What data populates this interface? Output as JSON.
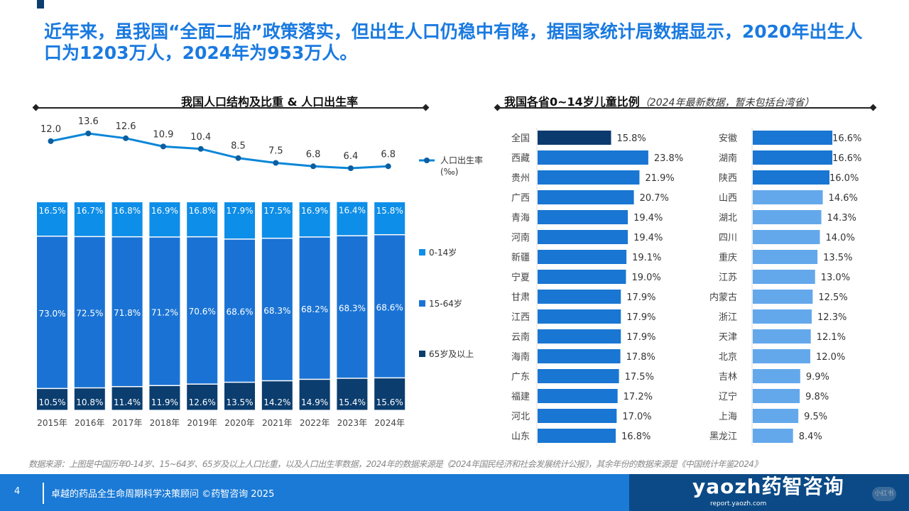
{
  "headline": "近年来，虽我国“全面二胎”政策落实，但出生人口仍稳中有降，据国家统计局数据显示，2020年出生人口为1203万人，2024年为953万人。",
  "left_title": "我国人口结构及比重 & 人口出生率",
  "right_title": "我国各省0~14岁儿童比例",
  "right_subtitle": "（2024年最新数据，暂未包括台湾省）",
  "source": "数据来源：上图是中国历年0-14岁、15~64岁、65岁及以上人口比重，以及人口出生率数据，2024年的数据来源是《2024年国民经济和社会发展统计公报》，其余年份的数据来源是《中国统计年鉴2024》",
  "footer": {
    "page": "4",
    "text": "卓越的药品全生命周期科学决策顾问  ©药智咨询 2025",
    "logo": "yaozh药智咨询",
    "logo_sub": "report.yaozh.com",
    "badge": "小红书"
  },
  "colors": {
    "accent": "#1a7ae0",
    "age0_14": "#0d8ee8",
    "age15_64": "#1a73d4",
    "age65": "#0b3d6e",
    "province_dark": "#0b3a6e",
    "province_mid": "#1976d2",
    "province_light": "#64a8ec"
  },
  "chart_data": [
    {
      "type": "bar",
      "stacked": true,
      "categories": [
        "2015年",
        "2016年",
        "2017年",
        "2018年",
        "2019年",
        "2020年",
        "2021年",
        "2022年",
        "2023年",
        "2024年"
      ],
      "series": [
        {
          "name": "65岁及以上",
          "values": [
            10.5,
            10.8,
            11.4,
            11.9,
            12.6,
            13.5,
            14.2,
            14.9,
            15.4,
            15.6
          ]
        },
        {
          "name": "15-64岁",
          "values": [
            73.0,
            72.5,
            71.8,
            71.2,
            70.6,
            68.6,
            68.3,
            68.2,
            68.3,
            68.6
          ]
        },
        {
          "name": "0-14岁",
          "values": [
            16.5,
            16.7,
            16.8,
            16.9,
            16.8,
            17.9,
            17.5,
            16.9,
            16.4,
            15.8
          ]
        }
      ],
      "line": {
        "name": "人口出生率",
        "unit": "(‰)",
        "values": [
          12.0,
          13.6,
          12.6,
          10.9,
          10.4,
          8.5,
          7.5,
          6.8,
          6.4,
          6.8
        ]
      },
      "legend": "right"
    },
    {
      "type": "bar",
      "orientation": "horizontal",
      "unit": "%",
      "columns": [
        [
          {
            "name": "全国",
            "value": 15.8
          },
          {
            "name": "西藏",
            "value": 23.8
          },
          {
            "name": "贵州",
            "value": 21.9
          },
          {
            "name": "广西",
            "value": 20.7
          },
          {
            "name": "青海",
            "value": 19.4
          },
          {
            "name": "河南",
            "value": 19.4
          },
          {
            "name": "新疆",
            "value": 19.1
          },
          {
            "name": "宁夏",
            "value": 19.0
          },
          {
            "name": "甘肃",
            "value": 17.9
          },
          {
            "name": "江西",
            "value": 17.9
          },
          {
            "name": "云南",
            "value": 17.9
          },
          {
            "name": "海南",
            "value": 17.8
          },
          {
            "name": "广东",
            "value": 17.5
          },
          {
            "name": "福建",
            "value": 17.2
          },
          {
            "name": "河北",
            "value": 17.0
          },
          {
            "name": "山东",
            "value": 16.8
          }
        ],
        [
          {
            "name": "安徽",
            "value": 16.6
          },
          {
            "name": "湖南",
            "value": 16.6
          },
          {
            "name": "陕西",
            "value": 16.0
          },
          {
            "name": "山西",
            "value": 14.6
          },
          {
            "name": "湖北",
            "value": 14.3
          },
          {
            "name": "四川",
            "value": 14.0
          },
          {
            "name": "重庆",
            "value": 13.5
          },
          {
            "name": "江苏",
            "value": 13.0
          },
          {
            "name": "内蒙古",
            "value": 12.5
          },
          {
            "name": "浙江",
            "value": 12.3
          },
          {
            "name": "天津",
            "value": 12.1
          },
          {
            "name": "北京",
            "value": 12.0
          },
          {
            "name": "吉林",
            "value": 9.9
          },
          {
            "name": "辽宁",
            "value": 9.8
          },
          {
            "name": "上海",
            "value": 9.5
          },
          {
            "name": "黑龙江",
            "value": 8.4
          }
        ]
      ]
    }
  ]
}
